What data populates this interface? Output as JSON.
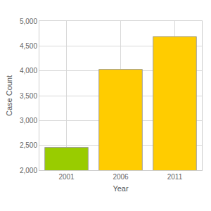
{
  "chart_data": {
    "type": "bar",
    "x_label": "Year",
    "y_label": "Case Count",
    "categories": [
      "2001",
      "2006",
      "2011"
    ],
    "values": [
      2460,
      4030,
      4690
    ],
    "colors": [
      "#99cc00",
      "#ffcc00",
      "#ffcc00"
    ],
    "ylim": [
      2000,
      5000
    ],
    "yticks": [
      {
        "value": 2000,
        "label": "2,000"
      },
      {
        "value": 2500,
        "label": "2,500"
      },
      {
        "value": 3000,
        "label": "3,000"
      },
      {
        "value": 3500,
        "label": "3,500"
      },
      {
        "value": 4000,
        "label": "4,000"
      },
      {
        "value": 4500,
        "label": "4,500"
      },
      {
        "value": 5000,
        "label": "5,000"
      }
    ],
    "grid": true
  }
}
